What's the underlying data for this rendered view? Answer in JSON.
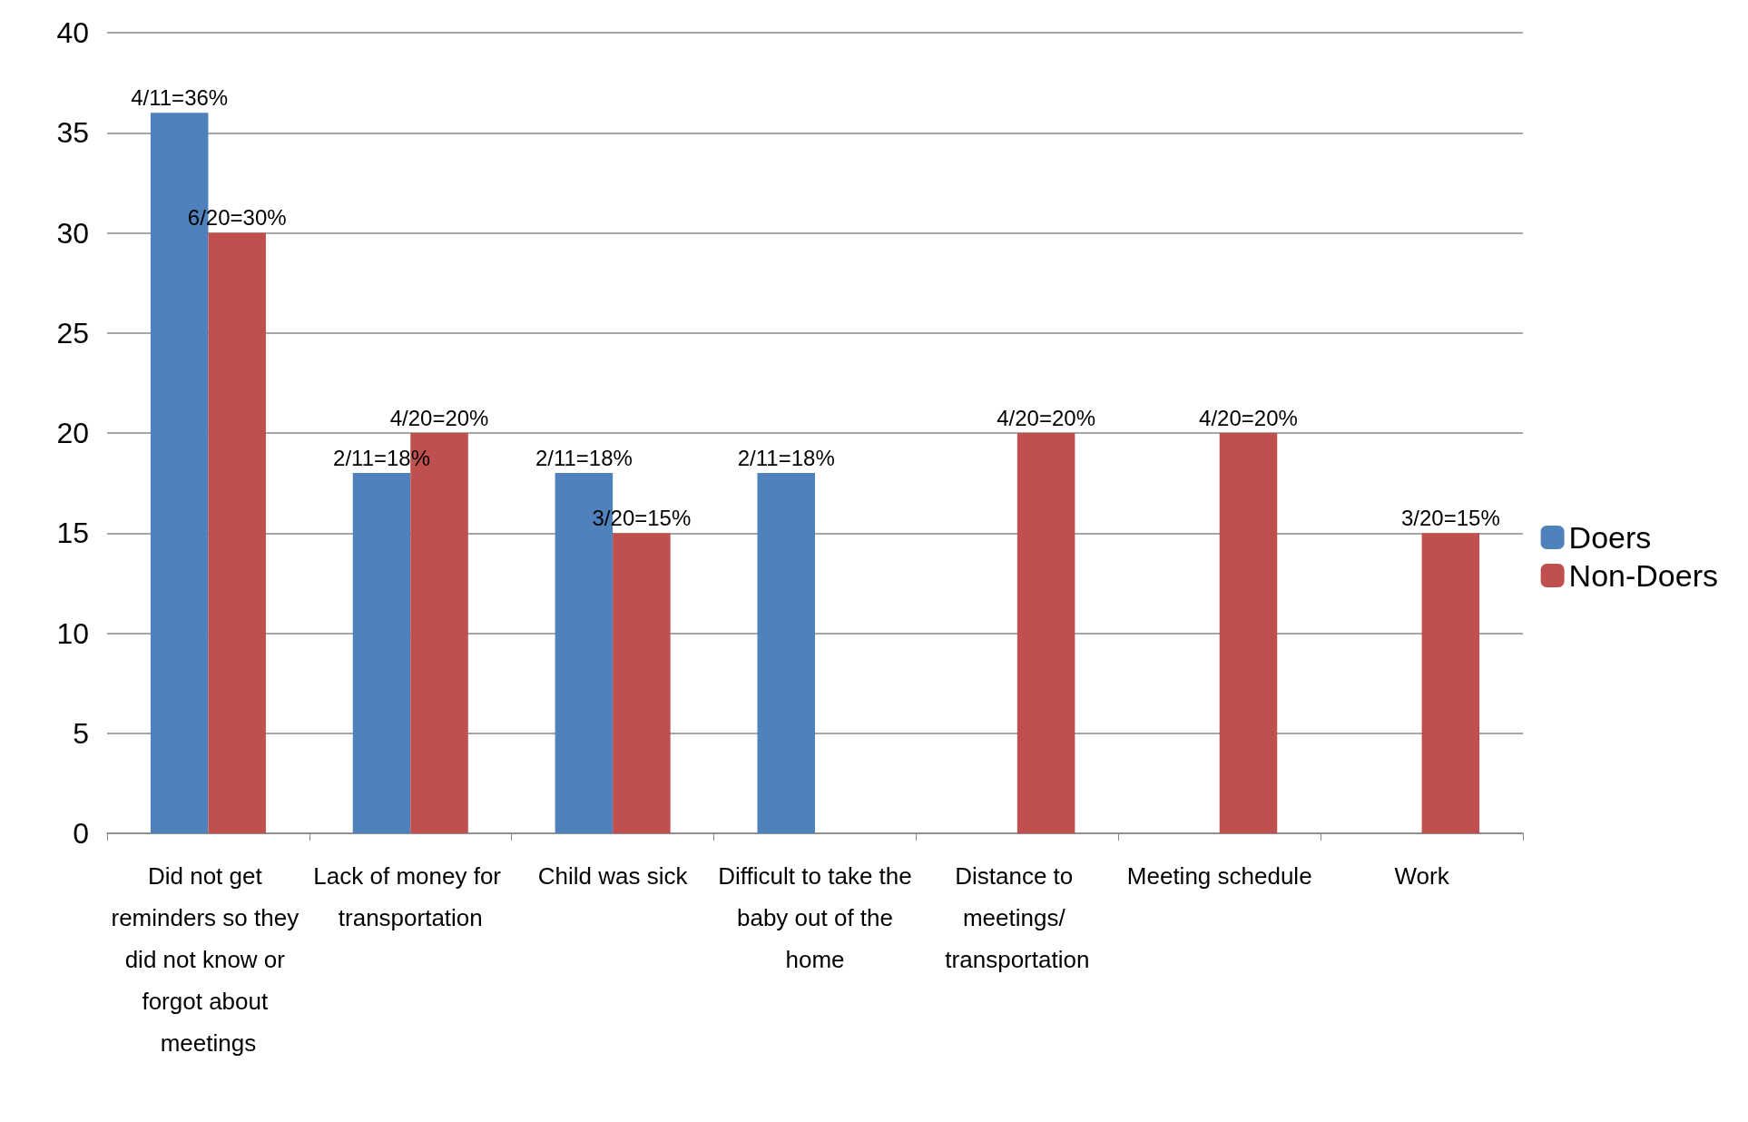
{
  "chart_data": {
    "type": "bar",
    "categories": [
      "Did not get reminders so they did not know or forgot about meetings",
      "Lack of money for transportation",
      "Child was sick",
      "Difficult to take the baby out of the home",
      "Distance to meetings/ transportation",
      "Meeting schedule",
      "Work"
    ],
    "series": [
      {
        "name": "Doers",
        "color": "#4f81bd",
        "values": [
          36,
          18,
          18,
          18,
          null,
          null,
          null
        ],
        "value_labels": [
          "4/11=36%",
          "2/11=18%",
          "2/11=18%",
          "2/11=18%",
          null,
          null,
          null
        ]
      },
      {
        "name": "Non-Doers",
        "color": "#c0504d",
        "values": [
          30,
          20,
          15,
          null,
          20,
          20,
          15
        ],
        "value_labels": [
          "6/20=30%",
          "4/20=20%",
          "3/20=15%",
          null,
          "4/20=20%",
          "4/20=20%",
          "3/20=15%"
        ]
      }
    ],
    "ylim": [
      0,
      40
    ],
    "yticks": [
      0,
      5,
      10,
      15,
      20,
      25,
      30,
      35,
      40
    ],
    "grid": "y",
    "legend": "right"
  }
}
